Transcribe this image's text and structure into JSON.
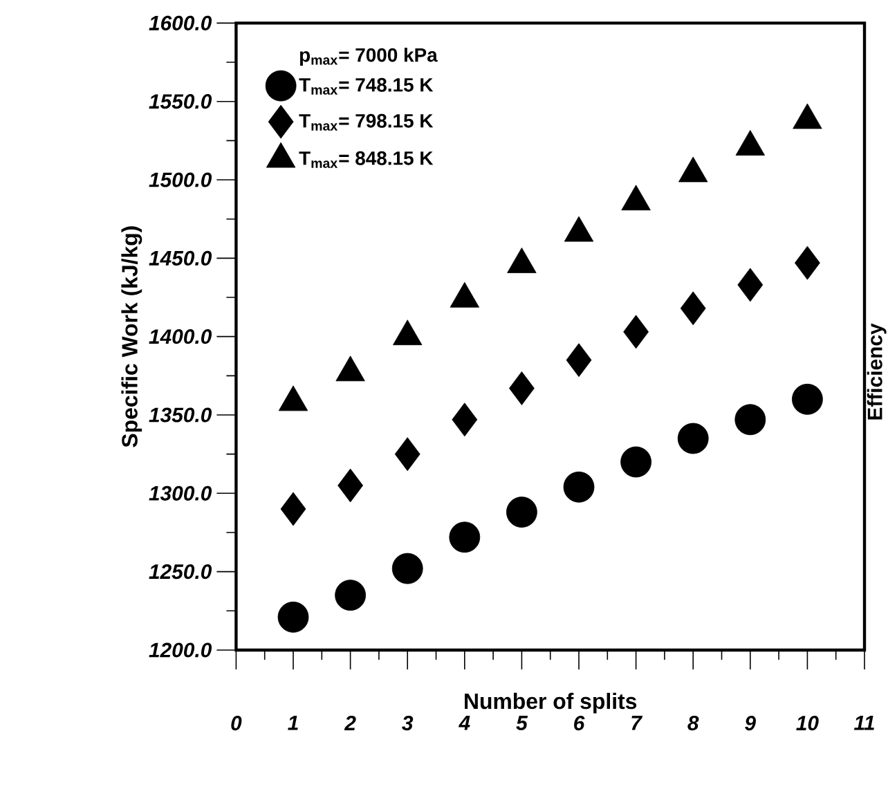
{
  "chart_data": {
    "type": "scatter",
    "xlabel": "Number of splits",
    "ylabel": "Specific Work (kJ/kg)",
    "y2label": "Efficiency",
    "legend_title": "p$_{max}$= 7000 kPa",
    "legend": "top left",
    "grid": false,
    "x": [
      1,
      2,
      3,
      4,
      5,
      6,
      7,
      8,
      9,
      10
    ],
    "xlim": [
      0,
      11
    ],
    "xticks": [
      0,
      1,
      2,
      3,
      4,
      5,
      6,
      7,
      8,
      9,
      10,
      11
    ],
    "ylim": [
      1200,
      1600
    ],
    "yticks": [
      {
        "value": 1200,
        "label": "1200.0"
      },
      {
        "value": 1250,
        "label": "1250.0"
      },
      {
        "value": 1300,
        "label": "1300.0"
      },
      {
        "value": 1350,
        "label": "1350.0"
      },
      {
        "value": 1400,
        "label": "1400.0"
      },
      {
        "value": 1450,
        "label": "1450.0"
      },
      {
        "value": 1500,
        "label": "1500.0"
      },
      {
        "value": 1550,
        "label": "1550.0"
      },
      {
        "value": 1600,
        "label": "1600.0"
      }
    ],
    "series": [
      {
        "name": "T$_{max}$= 748.15 K",
        "color": "#000000",
        "marker": "circle",
        "values": [
          1221,
          1235,
          1252,
          1272,
          1288,
          1304,
          1320,
          1335,
          1347,
          1360
        ]
      },
      {
        "name": "T$_{max}$= 798.15 K",
        "color": "#000000",
        "marker": "diamond",
        "values": [
          1290,
          1305,
          1325,
          1347,
          1367,
          1385,
          1403,
          1418,
          1433,
          1447
        ]
      },
      {
        "name": "T$_{max}$= 848.15 K",
        "color": "#000000",
        "marker": "triangle",
        "values": [
          1358,
          1377,
          1400,
          1424,
          1446,
          1466,
          1486,
          1504,
          1521,
          1538
        ]
      }
    ]
  }
}
